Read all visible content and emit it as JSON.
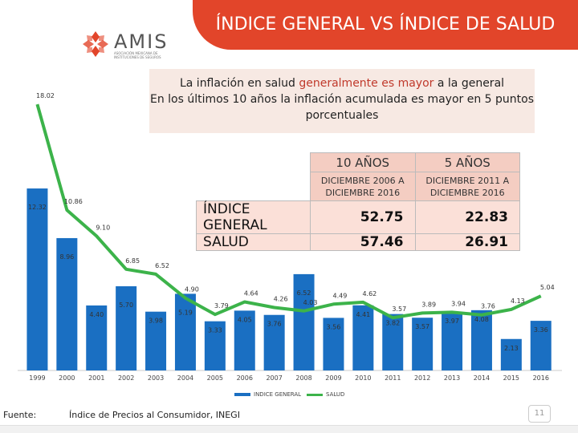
{
  "header": {
    "title": "ÍNDICE GENERAL VS ÍNDICE DE SALUD",
    "logo_text": "AMIS",
    "logo_subtitle": "ASOCIACIÓN MEXICANA DE INSTITUCIONES DE SEGUROS"
  },
  "note": {
    "line1_prefix": "La inflación en salud ",
    "line1_emph": "generalmente es mayor",
    "line1_suffix": " a la general",
    "line2": "En los últimos 10 años la inflación acumulada es mayor en 5 puntos porcentuales"
  },
  "table": {
    "col1_title": "10 AÑOS",
    "col1_sub1": "DICIEMBRE 2006 A",
    "col1_sub2": "DICIEMBRE 2016",
    "col2_title": "5 AÑOS",
    "col2_sub1": "DICIEMBRE 2011 A",
    "col2_sub2": "DICIEMBRE 2016",
    "row1_label": "ÍNDICE GENERAL",
    "row1_v1": "52.75",
    "row1_v2": "22.83",
    "row2_label": "SALUD",
    "row2_v1": "57.46",
    "row2_v2": "26.91"
  },
  "footer": {
    "label": "Fuente:",
    "source": "Índice de Precios al Consumidor, INEGI",
    "page": "11"
  },
  "colors": {
    "bar": "#1a6fc2",
    "line": "#3cb34a",
    "banner": "#e2452a"
  },
  "chart_data": {
    "type": "bar",
    "categories": [
      "1999",
      "2000",
      "2001",
      "2002",
      "2003",
      "2004",
      "2005",
      "2006",
      "2007",
      "2008",
      "2009",
      "2010",
      "2011",
      "2012",
      "2013",
      "2014",
      "2015",
      "2016"
    ],
    "series": [
      {
        "name": "INDICE GENERAL",
        "type": "bar",
        "values": [
          12.32,
          8.96,
          4.4,
          5.7,
          3.98,
          5.19,
          3.33,
          4.05,
          3.76,
          6.52,
          3.56,
          4.41,
          3.82,
          3.57,
          3.97,
          4.08,
          2.13,
          3.36
        ]
      },
      {
        "name": "SALUD",
        "type": "line",
        "values": [
          18.02,
          10.86,
          9.1,
          6.85,
          6.52,
          4.9,
          3.79,
          4.64,
          4.26,
          4.03,
          4.49,
          4.62,
          3.57,
          3.89,
          3.94,
          3.76,
          4.13,
          5.04
        ]
      }
    ],
    "ylim": [
      0,
      19
    ],
    "legend": "bottom"
  }
}
